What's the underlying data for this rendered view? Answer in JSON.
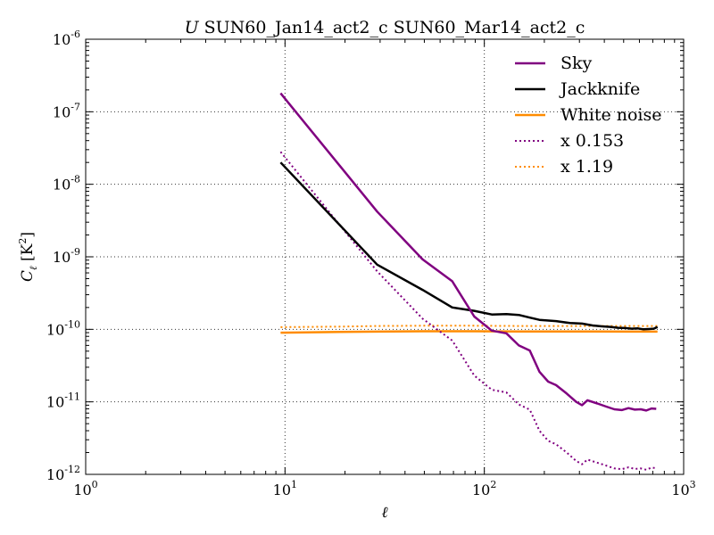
{
  "chart_data": {
    "type": "line",
    "title_italic": "U",
    "title": "SUN60_Jan14_act2_c SUN60_Mar14_act2_c",
    "xlabel": "ℓ",
    "ylabel_main": "C",
    "ylabel_sub": "ℓ",
    "ylabel_unit_open": " [K",
    "ylabel_unit_sup": "2",
    "ylabel_unit_close": "]",
    "xscale": "log",
    "yscale": "log",
    "xlim": [
      1,
      1000
    ],
    "ylim": [
      1e-12,
      1e-06
    ],
    "grid": true,
    "legend_position": "top-right",
    "x_ticks": [
      {
        "value": 1,
        "base": "10",
        "exp": "0"
      },
      {
        "value": 10,
        "base": "10",
        "exp": "1"
      },
      {
        "value": 100,
        "base": "10",
        "exp": "2"
      },
      {
        "value": 1000,
        "base": "10",
        "exp": "3"
      }
    ],
    "y_ticks": [
      {
        "value": 1e-12,
        "base": "10",
        "exp": "-12"
      },
      {
        "value": 1e-11,
        "base": "10",
        "exp": "-11"
      },
      {
        "value": 1e-10,
        "base": "10",
        "exp": "-10"
      },
      {
        "value": 1e-09,
        "base": "10",
        "exp": "-9"
      },
      {
        "value": 1e-08,
        "base": "10",
        "exp": "-8"
      },
      {
        "value": 1e-07,
        "base": "10",
        "exp": "-7"
      },
      {
        "value": 1e-06,
        "base": "10",
        "exp": "-6"
      }
    ],
    "series": [
      {
        "name": "Sky",
        "color": "#800080",
        "style": "solid",
        "points": [
          [
            9.5,
            1.8e-07
          ],
          [
            29,
            4.2e-09
          ],
          [
            49,
            9.2e-10
          ],
          [
            69,
            4.6e-10
          ],
          [
            89,
            1.5e-10
          ],
          [
            109,
            9.6e-11
          ],
          [
            129,
            8.8e-11
          ],
          [
            149,
            6e-11
          ],
          [
            169,
            5.1e-11
          ],
          [
            189,
            2.6e-11
          ],
          [
            209,
            1.9e-11
          ],
          [
            229,
            1.7e-11
          ],
          [
            259,
            1.3e-11
          ],
          [
            289,
            1e-11
          ],
          [
            309,
            9e-12
          ],
          [
            329,
            1.05e-11
          ],
          [
            369,
            9.5e-12
          ],
          [
            409,
            8.6e-12
          ],
          [
            449,
            7.9e-12
          ],
          [
            489,
            7.7e-12
          ],
          [
            529,
            8.2e-12
          ],
          [
            569,
            7.8e-12
          ],
          [
            609,
            7.9e-12
          ],
          [
            649,
            7.6e-12
          ],
          [
            689,
            8.1e-12
          ],
          [
            729,
            8e-12
          ]
        ]
      },
      {
        "name": "Jackknife",
        "color": "#000000",
        "style": "solid",
        "points": [
          [
            9.5,
            2e-08
          ],
          [
            29,
            7.8e-10
          ],
          [
            49,
            3.5e-10
          ],
          [
            69,
            2e-10
          ],
          [
            89,
            1.8e-10
          ],
          [
            109,
            1.6e-10
          ],
          [
            129,
            1.62e-10
          ],
          [
            149,
            1.58e-10
          ],
          [
            169,
            1.45e-10
          ],
          [
            189,
            1.35e-10
          ],
          [
            229,
            1.3e-10
          ],
          [
            269,
            1.22e-10
          ],
          [
            309,
            1.2e-10
          ],
          [
            349,
            1.13e-10
          ],
          [
            389,
            1.1e-10
          ],
          [
            429,
            1.08e-10
          ],
          [
            469,
            1.05e-10
          ],
          [
            509,
            1.04e-10
          ],
          [
            549,
            1.02e-10
          ],
          [
            589,
            1.03e-10
          ],
          [
            629,
            1e-10
          ],
          [
            669,
            1.01e-10
          ],
          [
            709,
            1.02e-10
          ],
          [
            739,
            1.08e-10
          ]
        ]
      },
      {
        "name": "White noise",
        "color": "#ff8c00",
        "style": "solid",
        "points": [
          [
            9.5,
            9e-11
          ],
          [
            19,
            9.2e-11
          ],
          [
            29,
            9.3e-11
          ],
          [
            49,
            9.4e-11
          ],
          [
            89,
            9.4e-11
          ],
          [
            149,
            9.35e-11
          ],
          [
            229,
            9.35e-11
          ],
          [
            349,
            9.35e-11
          ],
          [
            509,
            9.3e-11
          ],
          [
            739,
            9.3e-11
          ]
        ]
      },
      {
        "name": "x 0.153",
        "color": "#800080",
        "style": "dotted",
        "points": [
          [
            9.5,
            2.8e-08
          ],
          [
            29,
            6.3e-10
          ],
          [
            49,
            1.4e-10
          ],
          [
            69,
            7e-11
          ],
          [
            89,
            2.3e-11
          ],
          [
            109,
            1.47e-11
          ],
          [
            129,
            1.35e-11
          ],
          [
            149,
            9.2e-12
          ],
          [
            169,
            7.8e-12
          ],
          [
            189,
            4e-12
          ],
          [
            209,
            2.9e-12
          ],
          [
            229,
            2.6e-12
          ],
          [
            259,
            2e-12
          ],
          [
            289,
            1.53e-12
          ],
          [
            309,
            1.38e-12
          ],
          [
            329,
            1.6e-12
          ],
          [
            369,
            1.45e-12
          ],
          [
            409,
            1.32e-12
          ],
          [
            449,
            1.21e-12
          ],
          [
            489,
            1.18e-12
          ],
          [
            529,
            1.25e-12
          ],
          [
            569,
            1.19e-12
          ],
          [
            609,
            1.21e-12
          ],
          [
            649,
            1.16e-12
          ],
          [
            689,
            1.24e-12
          ],
          [
            729,
            1.22e-12
          ]
        ]
      },
      {
        "name": "x 1.19",
        "color": "#ff8c00",
        "style": "dotted",
        "points": [
          [
            9.5,
            1.07e-10
          ],
          [
            19,
            1.09e-10
          ],
          [
            29,
            1.11e-10
          ],
          [
            49,
            1.12e-10
          ],
          [
            89,
            1.12e-10
          ],
          [
            149,
            1.11e-10
          ],
          [
            229,
            1.11e-10
          ],
          [
            349,
            1.11e-10
          ],
          [
            509,
            1.11e-10
          ],
          [
            739,
            1.11e-10
          ]
        ]
      }
    ]
  }
}
